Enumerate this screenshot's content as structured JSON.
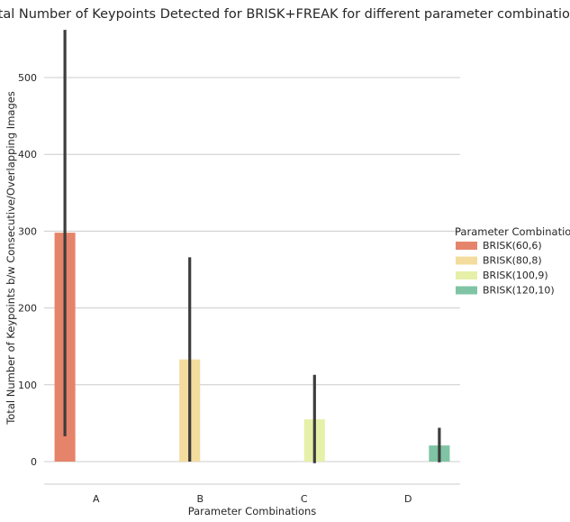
{
  "chart_data": {
    "type": "bar",
    "title": "Total Number of Keypoints Detected for BRISK+FREAK for different parameter combinations",
    "xlabel": "Parameter Combinations",
    "ylabel": "Total Number of Keypoints b/w Consecutive/Overlapping Images",
    "categories": [
      "A",
      "B",
      "C",
      "D"
    ],
    "ylim": [
      -30,
      570
    ],
    "yticks": [
      0,
      100,
      200,
      300,
      400,
      500
    ],
    "grid": true,
    "legend": {
      "title": "Parameter Combinations",
      "placement": "right"
    },
    "series": [
      {
        "name": "BRISK(60,6)",
        "color": "#e5846a",
        "values": [
          298,
          null,
          null,
          null
        ],
        "ci": [
          [
            33,
            562
          ],
          null,
          null,
          null
        ]
      },
      {
        "name": "BRISK(80,8)",
        "color": "#f3dc9e",
        "values": [
          null,
          133,
          null,
          null
        ],
        "ci": [
          null,
          [
            0,
            266
          ],
          null,
          null
        ]
      },
      {
        "name": "BRISK(100,9)",
        "color": "#e7f0a8",
        "values": [
          null,
          null,
          55,
          null
        ],
        "ci": [
          null,
          null,
          [
            -2,
            113
          ],
          null
        ]
      },
      {
        "name": "BRISK(120,10)",
        "color": "#7fc4a5",
        "values": [
          null,
          null,
          null,
          21
        ],
        "ci": [
          null,
          null,
          null,
          [
            -1,
            44
          ]
        ]
      }
    ]
  }
}
